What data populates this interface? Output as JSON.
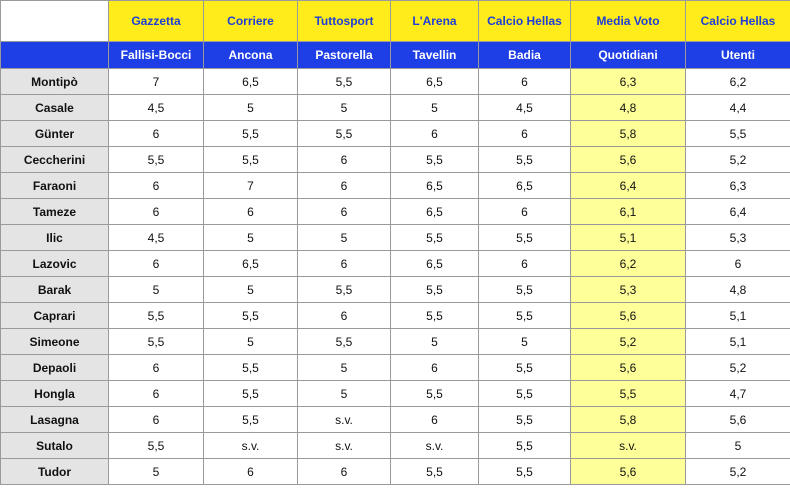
{
  "header": {
    "sources": [
      "Gazzetta",
      "Corriere",
      "Tuttosport",
      "L'Arena",
      "Calcio Hellas",
      "Media Voto",
      "Calcio Hellas"
    ],
    "authors": [
      "Fallisi-Bocci",
      "Ancona",
      "Pastorella",
      "Tavellin",
      "Badia",
      "Quotidiani",
      "Utenti"
    ]
  },
  "rows": [
    {
      "name": "Montipò",
      "values": [
        "7",
        "6,5",
        "5,5",
        "6,5",
        "6",
        "6,3",
        "6,2"
      ]
    },
    {
      "name": "Casale",
      "values": [
        "4,5",
        "5",
        "5",
        "5",
        "4,5",
        "4,8",
        "4,4"
      ]
    },
    {
      "name": "Günter",
      "values": [
        "6",
        "5,5",
        "5,5",
        "6",
        "6",
        "5,8",
        "5,5"
      ]
    },
    {
      "name": "Ceccherini",
      "values": [
        "5,5",
        "5,5",
        "6",
        "5,5",
        "5,5",
        "5,6",
        "5,2"
      ]
    },
    {
      "name": "Faraoni",
      "values": [
        "6",
        "7",
        "6",
        "6,5",
        "6,5",
        "6,4",
        "6,3"
      ]
    },
    {
      "name": "Tameze",
      "values": [
        "6",
        "6",
        "6",
        "6,5",
        "6",
        "6,1",
        "6,4"
      ]
    },
    {
      "name": "Ilic",
      "values": [
        "4,5",
        "5",
        "5",
        "5,5",
        "5,5",
        "5,1",
        "5,3"
      ]
    },
    {
      "name": "Lazovic",
      "values": [
        "6",
        "6,5",
        "6",
        "6,5",
        "6",
        "6,2",
        "6"
      ]
    },
    {
      "name": "Barak",
      "values": [
        "5",
        "5",
        "5,5",
        "5,5",
        "5,5",
        "5,3",
        "4,8"
      ]
    },
    {
      "name": "Caprari",
      "values": [
        "5,5",
        "5,5",
        "6",
        "5,5",
        "5,5",
        "5,6",
        "5,1"
      ]
    },
    {
      "name": "Simeone",
      "values": [
        "5,5",
        "5",
        "5,5",
        "5",
        "5",
        "5,2",
        "5,1"
      ]
    },
    {
      "name": "Depaoli",
      "values": [
        "6",
        "5,5",
        "5",
        "6",
        "5,5",
        "5,6",
        "5,2"
      ]
    },
    {
      "name": "Hongla",
      "values": [
        "6",
        "5,5",
        "5",
        "5,5",
        "5,5",
        "5,5",
        "4,7"
      ]
    },
    {
      "name": "Lasagna",
      "values": [
        "6",
        "5,5",
        "s.v.",
        "6",
        "5,5",
        "5,8",
        "5,6"
      ]
    },
    {
      "name": "Sutalo",
      "values": [
        "5,5",
        "s.v.",
        "s.v.",
        "s.v.",
        "5,5",
        "s.v.",
        "5"
      ]
    },
    {
      "name": "Tudor",
      "values": [
        "5",
        "6",
        "6",
        "5,5",
        "5,5",
        "5,6",
        "5,2"
      ]
    }
  ]
}
